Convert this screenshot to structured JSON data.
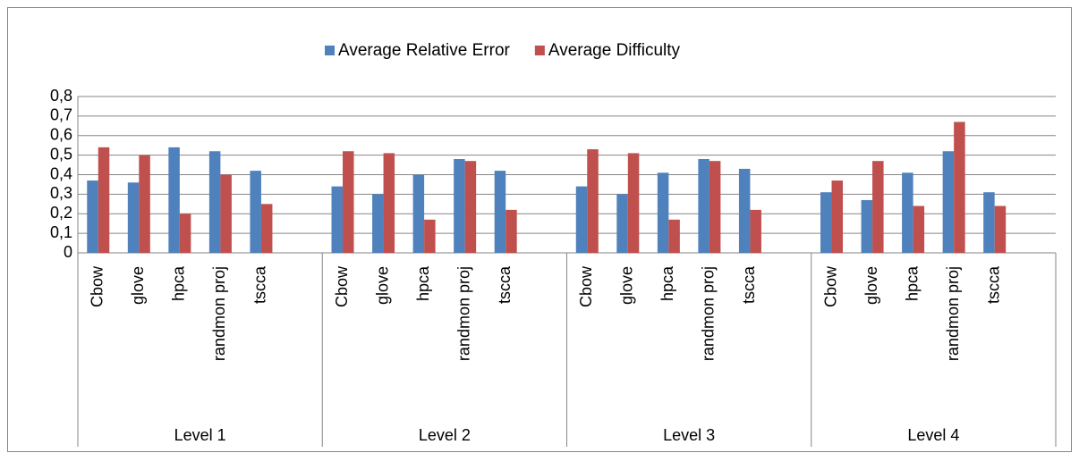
{
  "chart_data": {
    "type": "bar",
    "categories": [
      "Cbow",
      "glove",
      "hpca",
      "randmon proj",
      "tscca",
      null,
      "Cbow",
      "glove",
      "hpca",
      "randmon proj",
      "tscca",
      null,
      "Cbow",
      "glove",
      "hpca",
      "randmon proj",
      "tscca",
      null,
      "Cbow",
      "glove",
      "hpca",
      "randmon proj",
      "tscca",
      null
    ],
    "groups": [
      "Level 1",
      "Level 2",
      "Level 3",
      "Level 4"
    ],
    "series": [
      {
        "name": "Average Relative Error",
        "color": "#4f81bd",
        "values": [
          0.37,
          0.36,
          0.54,
          0.52,
          0.42,
          null,
          0.34,
          0.3,
          0.4,
          0.48,
          0.42,
          null,
          0.34,
          0.3,
          0.41,
          0.48,
          0.43,
          null,
          0.31,
          0.27,
          0.41,
          0.52,
          0.31,
          null
        ]
      },
      {
        "name": "Average Difficulty",
        "color": "#c0504d",
        "values": [
          0.54,
          0.5,
          0.2,
          0.4,
          0.25,
          null,
          0.52,
          0.51,
          0.17,
          0.47,
          0.22,
          null,
          0.53,
          0.51,
          0.17,
          0.47,
          0.22,
          null,
          0.37,
          0.47,
          0.24,
          0.67,
          0.24,
          null
        ]
      }
    ],
    "ylim": [
      0,
      0.8
    ],
    "yticks": [
      0,
      {
        "value": 0.1,
        "label": "0,1"
      },
      {
        "value": 0.2,
        "label": "0,2"
      },
      {
        "value": 0.3,
        "label": "0,3"
      },
      {
        "value": 0.4,
        "label": "0,4"
      },
      {
        "value": 0.5,
        "label": "0,5"
      },
      {
        "value": 0.6,
        "label": "0,6"
      },
      {
        "value": 0.7,
        "label": "0,7"
      },
      {
        "value": 0.8,
        "label": "0,8"
      }
    ],
    "grid": true,
    "legend": "top"
  }
}
